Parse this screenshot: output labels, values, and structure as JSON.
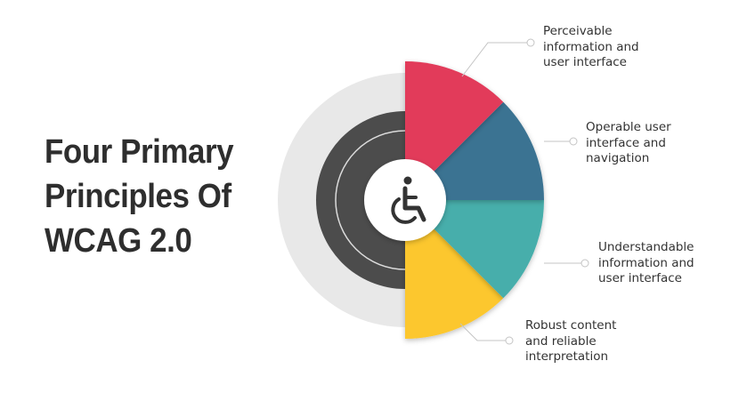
{
  "title": {
    "lines": [
      "Four Primary",
      "Principles Of",
      "WCAG 2.0"
    ]
  },
  "principles": [
    {
      "lines": [
        "Perceivable",
        "information and",
        "user interface"
      ],
      "color": "#e23b5a"
    },
    {
      "lines": [
        "Operable user",
        "interface and",
        "navigation"
      ],
      "color": "#3b7392"
    },
    {
      "lines": [
        "Understandable",
        "information and",
        "user interface"
      ],
      "color": "#46aeab"
    },
    {
      "lines": [
        "Robust content",
        "and reliable",
        "interpretation"
      ],
      "color": "#fcc72d"
    }
  ],
  "center_icon": "wheelchair-accessibility-icon",
  "colors": {
    "outer_ring": "#e8e8e8",
    "inner_disc": "#4c4c4c",
    "title": "#2e2e2e",
    "connector": "#c4c4c4"
  }
}
